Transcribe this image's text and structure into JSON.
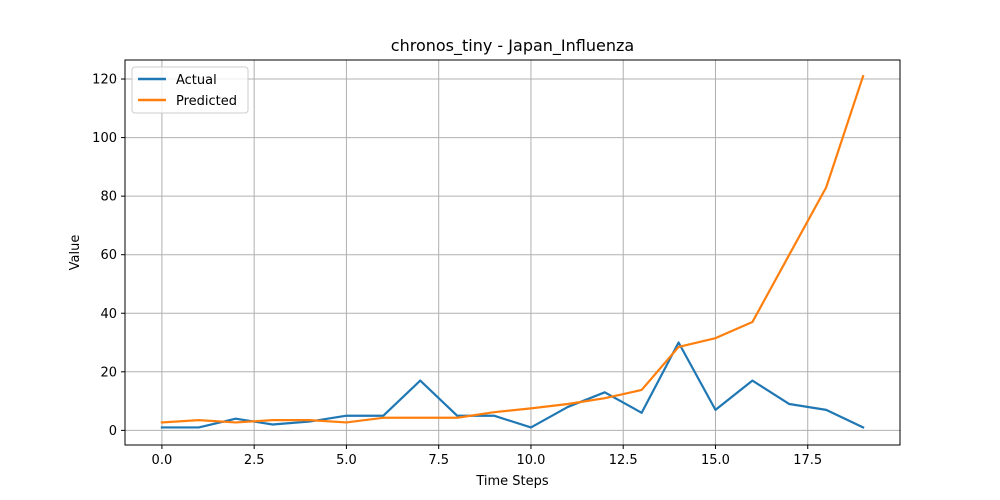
{
  "chart_data": {
    "type": "line",
    "title": "chronos_tiny - Japan_Influenza",
    "xlabel": "Time Steps",
    "ylabel": "Value",
    "xlim": [
      -1.0,
      20.0
    ],
    "ylim": [
      -5.0,
      126.5
    ],
    "xticks": [
      0.0,
      2.5,
      5.0,
      7.5,
      10.0,
      12.5,
      15.0,
      17.5
    ],
    "xtick_labels": [
      "0.0",
      "2.5",
      "5.0",
      "7.5",
      "10.0",
      "12.5",
      "15.0",
      "17.5"
    ],
    "yticks": [
      0,
      20,
      40,
      60,
      80,
      100,
      120
    ],
    "ytick_labels": [
      "0",
      "20",
      "40",
      "60",
      "80",
      "100",
      "120"
    ],
    "grid": true,
    "legend_position": "top-left",
    "x": [
      0,
      1,
      2,
      3,
      4,
      5,
      6,
      7,
      8,
      9,
      10,
      11,
      12,
      13,
      14,
      15,
      16,
      17,
      18,
      19
    ],
    "series": [
      {
        "name": "Actual",
        "color": "#1f77b4",
        "values": [
          1,
          1,
          4,
          2,
          3,
          5,
          5,
          17,
          5,
          5,
          1,
          8,
          13,
          6,
          30,
          7,
          17,
          9,
          7,
          1
        ]
      },
      {
        "name": "Predicted",
        "color": "#ff7f0e",
        "values": [
          2.7,
          3.5,
          2.7,
          3.5,
          3.5,
          2.7,
          4.3,
          4.3,
          4.3,
          6.2,
          7.5,
          9.0,
          11.0,
          13.8,
          28.5,
          31.5,
          37.0,
          60.0,
          83.0,
          121.0
        ]
      }
    ]
  }
}
